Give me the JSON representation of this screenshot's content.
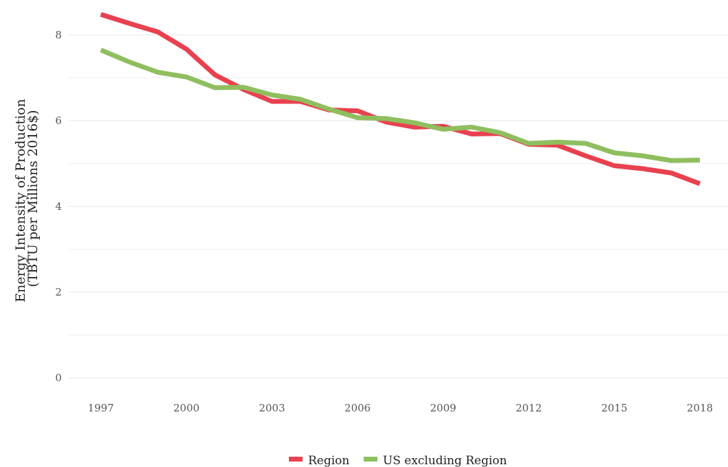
{
  "chart_data": {
    "type": "line",
    "title": "",
    "xlabel": "",
    "ylabel_lines": [
      "Energy Intensity of Production",
      "(TBTU per Millions 2016$)"
    ],
    "x": [
      1997,
      1998,
      1999,
      2000,
      2001,
      2002,
      2003,
      2004,
      2005,
      2006,
      2007,
      2008,
      2009,
      2010,
      2011,
      2012,
      2013,
      2014,
      2015,
      2016,
      2017,
      2018
    ],
    "x_ticks": [
      "1997",
      "2000",
      "2003",
      "2006",
      "2009",
      "2012",
      "2015",
      "2018"
    ],
    "y_ticks": [
      "0",
      "2",
      "4",
      "6",
      "8"
    ],
    "ylim": [
      0,
      8.7
    ],
    "xlim": [
      1996.3,
      2019.2
    ],
    "grid": true,
    "legend_position": "bottom",
    "series": [
      {
        "name": "Region",
        "color": "#e8414f",
        "values": [
          8.48,
          8.27,
          8.07,
          7.67,
          7.07,
          6.73,
          6.45,
          6.45,
          6.25,
          6.23,
          5.97,
          5.85,
          5.87,
          5.69,
          5.7,
          5.45,
          5.43,
          5.18,
          4.95,
          4.88,
          4.78,
          4.53
        ]
      },
      {
        "name": "US excluding Region",
        "color": "#8fbe5f",
        "values": [
          7.65,
          7.37,
          7.13,
          7.02,
          6.77,
          6.78,
          6.6,
          6.5,
          6.27,
          6.07,
          6.05,
          5.95,
          5.8,
          5.85,
          5.72,
          5.47,
          5.5,
          5.47,
          5.25,
          5.18,
          5.07,
          5.08
        ]
      }
    ]
  }
}
